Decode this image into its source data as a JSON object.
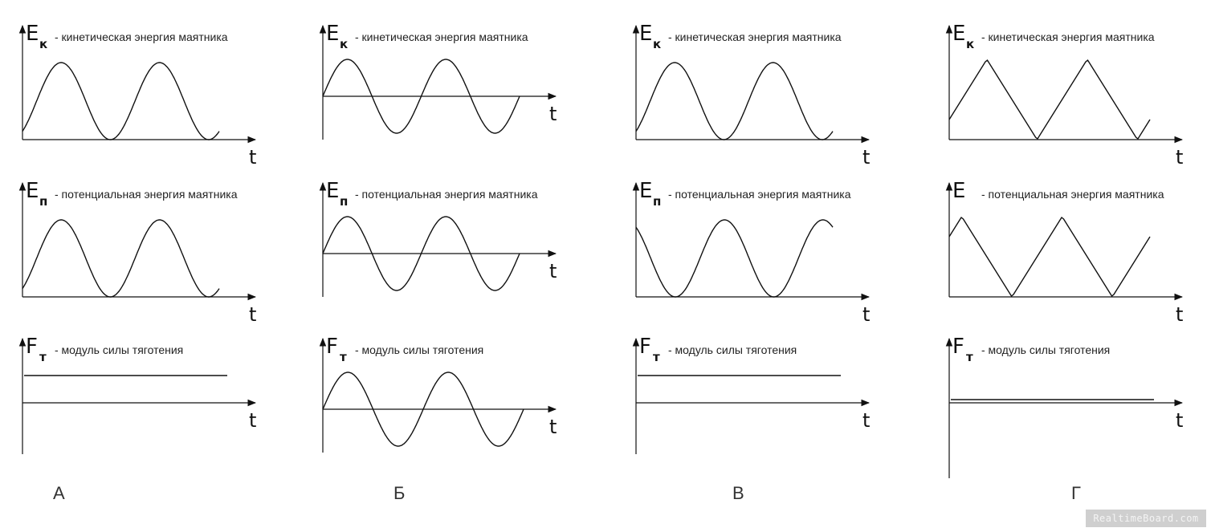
{
  "columns": [
    {
      "letter": "А",
      "rows": [
        {
          "symbol": "E",
          "subscript": "к",
          "description": "- кинетическая энергия маятника",
          "t_label": "t"
        },
        {
          "symbol": "E",
          "subscript": "п",
          "description": "- потенциальная энергия маятника",
          "t_label": "t"
        },
        {
          "symbol": "F",
          "subscript": "т",
          "description": "- модуль силы тяготения",
          "t_label": "t"
        }
      ]
    },
    {
      "letter": "Б",
      "rows": [
        {
          "symbol": "E",
          "subscript": "к",
          "description": "- кинетическая энергия маятника",
          "t_label": "t"
        },
        {
          "symbol": "E",
          "subscript": "п",
          "description": "- потенциальная энергия маятника",
          "t_label": "t"
        },
        {
          "symbol": "F",
          "subscript": "т",
          "description": "- модуль силы тяготения",
          "t_label": "t"
        }
      ]
    },
    {
      "letter": "В",
      "rows": [
        {
          "symbol": "E",
          "subscript": "к",
          "description": "- кинетическая энергия маятника",
          "t_label": "t"
        },
        {
          "symbol": "E",
          "subscript": "п",
          "description": "- потенциальная энергия маятника",
          "t_label": "t"
        },
        {
          "symbol": "F",
          "subscript": "т",
          "description": "- модуль силы тяготения",
          "t_label": "t"
        }
      ]
    },
    {
      "letter": "Г",
      "rows": [
        {
          "symbol": "E",
          "subscript": "к",
          "description": "- кинетическая энергия маятника",
          "t_label": "t"
        },
        {
          "symbol": "E",
          "subscript": "",
          "description": "- потенциальная энергия маятника",
          "t_label": "t"
        },
        {
          "symbol": "F",
          "subscript": "т",
          "description": "- модуль силы тяготения",
          "t_label": "t"
        }
      ]
    }
  ],
  "watermark": "RealtimeBoard.com"
}
